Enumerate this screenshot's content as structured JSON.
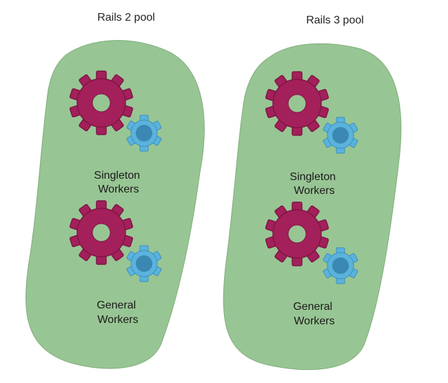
{
  "pools": [
    {
      "title": "Rails 2 pool",
      "groups": [
        {
          "label_line1": "Singleton",
          "label_line2": "Workers"
        },
        {
          "label_line1": "General",
          "label_line2": "Workers"
        }
      ]
    },
    {
      "title": "Rails 3 pool",
      "groups": [
        {
          "label_line1": "Singleton",
          "label_line2": "Workers"
        },
        {
          "label_line1": "General",
          "label_line2": "Workers"
        }
      ]
    }
  ],
  "colors": {
    "pool_fill": "#98c594",
    "pool_stroke": "#7fae7b",
    "large_gear_fill": "#a3205a",
    "large_gear_stroke": "#7e1645",
    "small_gear_fill": "#5ab3dc",
    "small_gear_center": "#3b88b2",
    "small_gear_stroke": "#3f8fba"
  },
  "icons": {
    "large_gear": "gear-icon",
    "small_gear": "gear-icon"
  }
}
